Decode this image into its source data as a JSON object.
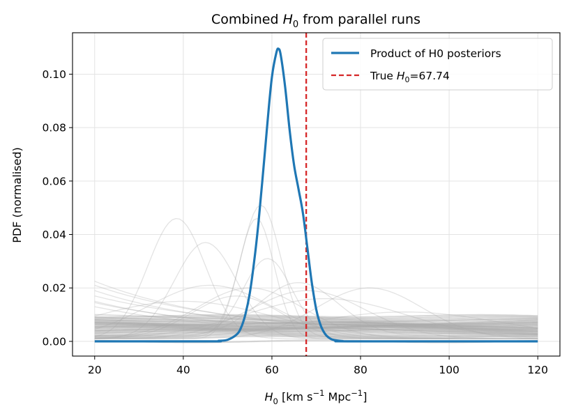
{
  "chart_data": {
    "type": "line",
    "title": {
      "prefix": "Combined ",
      "var": "H",
      "sub": "0",
      "suffix": " from parallel runs"
    },
    "xlabel": {
      "var": "H",
      "sub": "0",
      "text1": " [km s",
      "sup1": "−1",
      "text2": " Mpc",
      "sup2": "−1",
      "text3": "]"
    },
    "ylabel": "PDF (normalised)",
    "xlim": [
      15,
      125
    ],
    "ylim": [
      -0.0055,
      0.1155
    ],
    "xticks": [
      20,
      40,
      60,
      80,
      100,
      120
    ],
    "xtick_labels": [
      "20",
      "40",
      "60",
      "80",
      "100",
      "120"
    ],
    "yticks": [
      0.0,
      0.02,
      0.04,
      0.06,
      0.08,
      0.1
    ],
    "ytick_labels": [
      "0.00",
      "0.02",
      "0.04",
      "0.06",
      "0.08",
      "0.10"
    ],
    "grid": true,
    "legend_position": "top-right",
    "legend": [
      {
        "label": "Product of H0 posteriors",
        "style": "solid",
        "color": "#1f77b4"
      },
      {
        "label_prefix": "True ",
        "label_var": "H",
        "label_sub": "0",
        "label_suffix": "=67.74",
        "style": "dashed",
        "color": "#d62728"
      }
    ],
    "true_h0": 67.74,
    "product_curve": {
      "name": "Product of H0 posteriors",
      "color": "#1f77b4",
      "x": [
        20,
        46,
        48,
        50,
        52,
        53,
        54,
        55,
        56,
        57,
        58,
        59,
        60,
        61,
        61.5,
        62,
        63,
        64,
        65,
        66,
        67,
        68,
        69,
        70,
        71,
        72,
        73,
        74,
        76,
        78,
        120
      ],
      "y": [
        0.0,
        0.0,
        0.0002,
        0.0006,
        0.0025,
        0.005,
        0.01,
        0.018,
        0.03,
        0.045,
        0.063,
        0.082,
        0.099,
        0.108,
        0.1095,
        0.107,
        0.095,
        0.079,
        0.066,
        0.057,
        0.048,
        0.035,
        0.022,
        0.012,
        0.006,
        0.0028,
        0.0012,
        0.0005,
        0.0001,
        0.0,
        0.0
      ]
    },
    "run_posteriors": {
      "name": "Individual run posteriors",
      "color": "#aaaaaa",
      "x_range": [
        20,
        120
      ],
      "peaked": [
        {
          "mu": 38.5,
          "sigma": 6.5,
          "peak": 0.046,
          "base": 0.001
        },
        {
          "mu": 45,
          "sigma": 7,
          "peak": 0.037,
          "base": 0.001
        },
        {
          "mu": 57.5,
          "sigma": 4.5,
          "peak": 0.051,
          "base": 0.0015
        },
        {
          "mu": 56.5,
          "sigma": 4,
          "peak": 0.046,
          "base": 0.001
        },
        {
          "mu": 59,
          "sigma": 5.5,
          "peak": 0.031,
          "base": 0.002
        },
        {
          "mu": 82,
          "sigma": 12,
          "peak": 0.02,
          "base": 0.001
        },
        {
          "mu": 66,
          "sigma": 9,
          "peak": 0.022,
          "base": 0.002
        },
        {
          "mu": 55,
          "sigma": 12,
          "peak": 0.02,
          "base": 0.001
        },
        {
          "mu": 46,
          "sigma": 14,
          "peak": 0.021,
          "base": 0.001
        },
        {
          "mu": 68,
          "sigma": 13,
          "peak": 0.019,
          "base": 0.001
        },
        {
          "mu": 52,
          "sigma": 10,
          "peak": 0.017,
          "base": 0.001
        },
        {
          "mu": 72,
          "sigma": 18,
          "peak": 0.016,
          "base": 0.001
        },
        {
          "mu": 40,
          "sigma": 20,
          "peak": 0.015,
          "base": 0.001
        },
        {
          "mu": 90,
          "sigma": 22,
          "peak": 0.011,
          "base": 0.001
        }
      ],
      "falling": [
        {
          "start": 0.0225,
          "end": 0.002
        },
        {
          "start": 0.021,
          "end": 0.003
        },
        {
          "start": 0.019,
          "end": 0.002
        },
        {
          "start": 0.017,
          "end": 0.004
        },
        {
          "start": 0.015,
          "end": 0.002
        },
        {
          "start": 0.0145,
          "end": 0.003
        },
        {
          "start": 0.013,
          "end": 0.002
        }
      ],
      "flat": [
        0.0,
        0.0015,
        0.002,
        0.0025,
        0.003,
        0.0035,
        0.004,
        0.0042,
        0.0045,
        0.0048,
        0.005,
        0.0052,
        0.0055,
        0.0058,
        0.006,
        0.0062,
        0.0065,
        0.0068,
        0.007,
        0.0075,
        0.008,
        0.0085,
        0.009,
        0.0095
      ],
      "sloped": [
        {
          "start": 0.002,
          "end": 0.008
        },
        {
          "start": 0.003,
          "end": 0.0075
        },
        {
          "start": 0.004,
          "end": 0.007
        },
        {
          "start": 0.008,
          "end": 0.005
        },
        {
          "start": 0.009,
          "end": 0.004
        },
        {
          "start": 0.007,
          "end": 0.003
        },
        {
          "start": 0.01,
          "end": 0.005
        },
        {
          "start": 0.0055,
          "end": 0.0085
        },
        {
          "start": 0.0035,
          "end": 0.0065
        }
      ]
    }
  }
}
